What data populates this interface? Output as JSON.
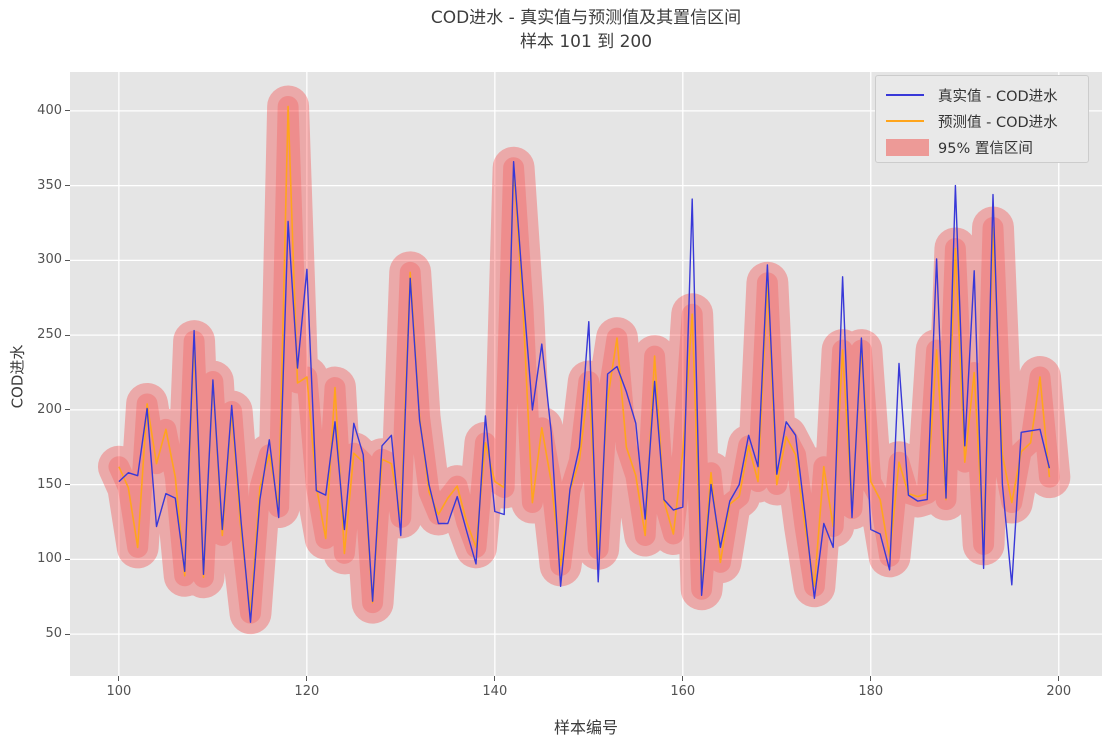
{
  "figure": {
    "title_line1": "COD进水 - 真实值与预测值及其置信区间",
    "title_line2": "样本 101 到 200",
    "xlabel": "样本编号",
    "ylabel": "COD进水"
  },
  "legend": {
    "position": "upper right",
    "items": [
      {
        "label": "真实值 - COD进水",
        "type": "line",
        "color": "#3838d8"
      },
      {
        "label": "预测值 - COD进水",
        "type": "line",
        "color": "#ffa51c"
      },
      {
        "label": "95% 置信区间",
        "type": "patch",
        "color": "#ed9a97"
      }
    ]
  },
  "chart_data": {
    "type": "line",
    "title": "COD进水 - 真实值与预测值及其置信区间 / 样本 101 到 200",
    "xlabel": "样本编号",
    "ylabel": "COD进水",
    "x_ticks": [
      100,
      120,
      140,
      160,
      180,
      200
    ],
    "y_ticks": [
      50,
      100,
      150,
      200,
      250,
      300,
      350,
      400
    ],
    "xlim": [
      94.8,
      204.6
    ],
    "ylim": [
      22,
      426
    ],
    "grid": true,
    "background": "#e5e5e5",
    "gridline_color": "#ffffff",
    "x": [
      100,
      101,
      102,
      103,
      104,
      105,
      106,
      107,
      108,
      109,
      110,
      111,
      112,
      113,
      114,
      115,
      116,
      117,
      118,
      119,
      120,
      121,
      122,
      123,
      124,
      125,
      126,
      127,
      128,
      129,
      130,
      131,
      132,
      133,
      134,
      135,
      136,
      137,
      138,
      139,
      140,
      141,
      142,
      143,
      144,
      145,
      146,
      147,
      148,
      149,
      150,
      151,
      152,
      153,
      154,
      155,
      156,
      157,
      158,
      159,
      160,
      161,
      162,
      163,
      164,
      165,
      166,
      167,
      168,
      169,
      170,
      171,
      172,
      173,
      174,
      175,
      176,
      177,
      178,
      179,
      180,
      181,
      182,
      183,
      184,
      185,
      186,
      187,
      188,
      189,
      190,
      191,
      192,
      193,
      194,
      195,
      196,
      197,
      198,
      199
    ],
    "series": [
      {
        "name": "真实值 - COD进水",
        "color": "#3838d8",
        "values": [
          152,
          158,
          156,
          201,
          122,
          144,
          141,
          92,
          253,
          90,
          220,
          120,
          203,
          125,
          58,
          140,
          180,
          128,
          326,
          228,
          294,
          146,
          143,
          192,
          120,
          191,
          170,
          72,
          176,
          183,
          116,
          288,
          193,
          150,
          124,
          124,
          142,
          119,
          97,
          196,
          132,
          130,
          366,
          280,
          200,
          244,
          185,
          82,
          147,
          175,
          259,
          85,
          224,
          229,
          212,
          191,
          127,
          219,
          140,
          133,
          135,
          341,
          76,
          150,
          108,
          139,
          150,
          183,
          162,
          297,
          157,
          192,
          183,
          130,
          74,
          124,
          108,
          289,
          128,
          248,
          120,
          117,
          93,
          231,
          143,
          139,
          140,
          301,
          141,
          350,
          176,
          293,
          94,
          344,
          150,
          83,
          185,
          186,
          187,
          161
        ]
      },
      {
        "name": "预测值 - COD进水",
        "color": "#ffa51c",
        "values": [
          162,
          148,
          108,
          204,
          164,
          187,
          155,
          89,
          246,
          88,
          219,
          116,
          199,
          118,
          64,
          148,
          170,
          135,
          403,
          218,
          222,
          149,
          114,
          215,
          104,
          171,
          165,
          71,
          167,
          164,
          128,
          292,
          195,
          145,
          130,
          141,
          149,
          125,
          108,
          178,
          152,
          148,
          362,
          268,
          138,
          188,
          152,
          96,
          146,
          166,
          219,
          107,
          207,
          248,
          175,
          156,
          116,
          236,
          139,
          117,
          172,
          264,
          80,
          158,
          98,
          137,
          142,
          176,
          152,
          285,
          150,
          182,
          170,
          122,
          82,
          162,
          122,
          240,
          134,
          240,
          152,
          140,
          102,
          165,
          144,
          142,
          144,
          240,
          140,
          308,
          165,
          225,
          110,
          322,
          170,
          138,
          172,
          178,
          222,
          155
        ]
      }
    ],
    "band": {
      "name": "95% 置信区间",
      "around_series": "预测值 - COD进水",
      "half_width": 14,
      "color": "#ff0000",
      "alpha": 0.3
    }
  }
}
